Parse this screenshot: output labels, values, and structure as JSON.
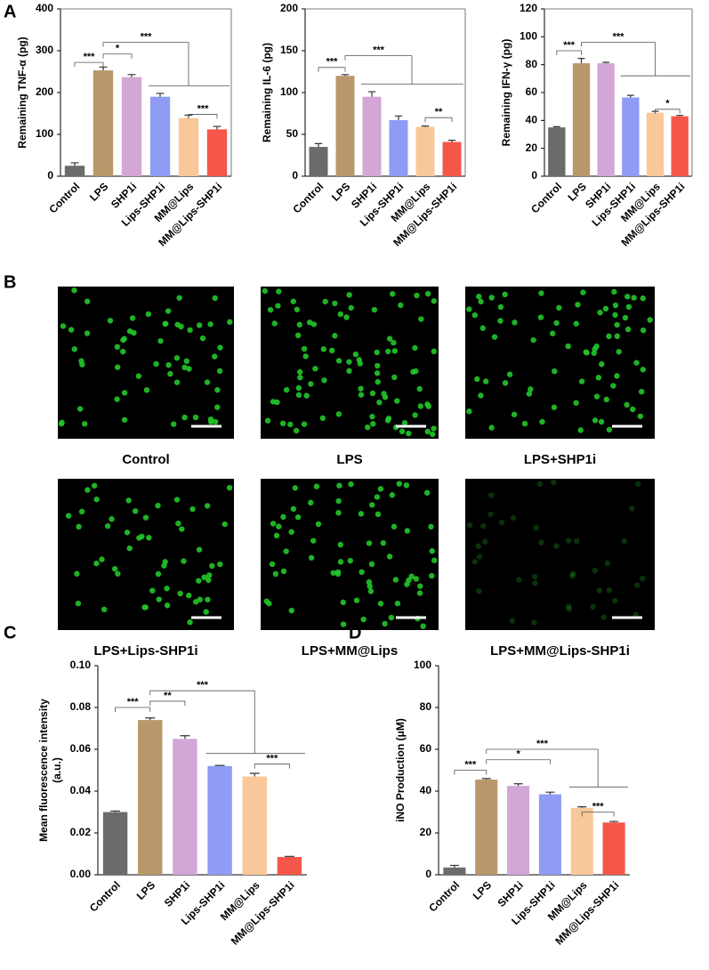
{
  "figure": {
    "panel_letters": [
      "A",
      "B",
      "C",
      "D"
    ],
    "micrographs": [
      "Control",
      "LPS",
      "LPS+SHP1i",
      "LPS+Lips-SHP1i",
      "LPS+MM@Lips",
      "LPS+MM@Lips-SHP1i"
    ]
  },
  "chart_data": [
    {
      "type": "bar",
      "ylabel": [
        "Remaining TNF-α (pg)"
      ],
      "categories": [
        "Control",
        "LPS",
        "SHP1i",
        "Lips-SHP1i",
        "MM@Lips",
        "MM@Lips-SHP1i"
      ],
      "values": [
        25,
        253,
        237,
        190,
        139,
        112
      ],
      "errors": [
        7,
        8,
        6,
        8,
        7,
        7
      ],
      "colors": [
        "#6b6b6b",
        "#b8976a",
        "#d4a6d6",
        "#8f9cf5",
        "#f9c89a",
        "#f4574a"
      ],
      "ylim": [
        0,
        400
      ],
      "yticks": [
        0,
        100,
        200,
        300,
        400
      ],
      "frame": true,
      "annotations": [
        "***",
        "*",
        "***",
        "***"
      ]
    },
    {
      "type": "bar",
      "ylabel": [
        "Remaining IL-6 (pg)"
      ],
      "categories": [
        "Control",
        "LPS",
        "SHP1i",
        "Lips-SHP1i",
        "MM@Lips",
        "MM@Lips-SHP1i"
      ],
      "values": [
        35,
        120,
        95,
        67,
        59,
        41
      ],
      "errors": [
        4,
        1.5,
        6,
        5,
        1,
        2
      ],
      "colors": [
        "#6b6b6b",
        "#b8976a",
        "#d4a6d6",
        "#8f9cf5",
        "#f9c89a",
        "#f4574a"
      ],
      "ylim": [
        0,
        200
      ],
      "yticks": [
        0,
        50,
        100,
        150,
        200
      ],
      "frame": true,
      "annotations": [
        "***",
        "***",
        "**"
      ]
    },
    {
      "type": "bar",
      "ylabel": [
        "Remaining IFN-γ (pg)"
      ],
      "categories": [
        "Control",
        "LPS",
        "SHP1i",
        "Lips-SHP1i",
        "MM@Lips",
        "MM@Lips-SHP1i"
      ],
      "values": [
        35,
        81,
        81,
        56.5,
        45.5,
        43
      ],
      "errors": [
        0.5,
        3.5,
        0.7,
        1.5,
        1,
        0.6
      ],
      "colors": [
        "#6b6b6b",
        "#b8976a",
        "#d4a6d6",
        "#8f9cf5",
        "#f9c89a",
        "#f4574a"
      ],
      "ylim": [
        0,
        120
      ],
      "yticks": [
        0,
        20,
        40,
        60,
        80,
        100,
        120
      ],
      "frame": true,
      "annotations": [
        "***",
        "***",
        "*"
      ]
    },
    {
      "type": "bar",
      "ylabel": [
        "Mean fluorescence intensity",
        "(a.u.)"
      ],
      "categories": [
        "Control",
        "LPS",
        "SHP1i",
        "Lips-SHP1i",
        "MM@Lips",
        "MM@Lips-SHP1i"
      ],
      "values": [
        0.03,
        0.074,
        0.065,
        0.052,
        0.047,
        0.0085
      ],
      "errors": [
        0.0005,
        0.001,
        0.0015,
        0.0003,
        0.0015,
        0.0003
      ],
      "colors": [
        "#6b6b6b",
        "#b8976a",
        "#d4a6d6",
        "#8f9cf5",
        "#f9c89a",
        "#f4574a"
      ],
      "ylim": [
        0,
        0.1
      ],
      "yticks": [
        {
          "value": 0,
          "label": "0.00"
        },
        {
          "value": 0.02,
          "label": "0.02"
        },
        {
          "value": 0.04,
          "label": "0.04"
        },
        {
          "value": 0.06,
          "label": "0.06"
        },
        {
          "value": 0.08,
          "label": "0.08"
        },
        {
          "value": 0.1,
          "label": "0.10"
        }
      ],
      "frame": false,
      "annotations": [
        "***",
        "**",
        "***",
        "***"
      ]
    },
    {
      "type": "bar",
      "ylabel": [
        "iNO Production (μM)"
      ],
      "categories": [
        "Control",
        "LPS",
        "SHP1i",
        "Lips-SHP1i",
        "MM@Lips",
        "MM@Lips-SHP1i"
      ],
      "values": [
        3.5,
        45.5,
        42.5,
        38.5,
        32,
        25
      ],
      "errors": [
        1,
        0.5,
        1,
        1,
        0.5,
        0.5
      ],
      "colors": [
        "#6b6b6b",
        "#b8976a",
        "#d4a6d6",
        "#8f9cf5",
        "#f9c89a",
        "#f4574a"
      ],
      "ylim": [
        0,
        100
      ],
      "yticks": [
        0,
        20,
        40,
        60,
        80,
        100
      ],
      "frame": false,
      "annotations": [
        "***",
        "*",
        "***",
        "***"
      ]
    }
  ]
}
